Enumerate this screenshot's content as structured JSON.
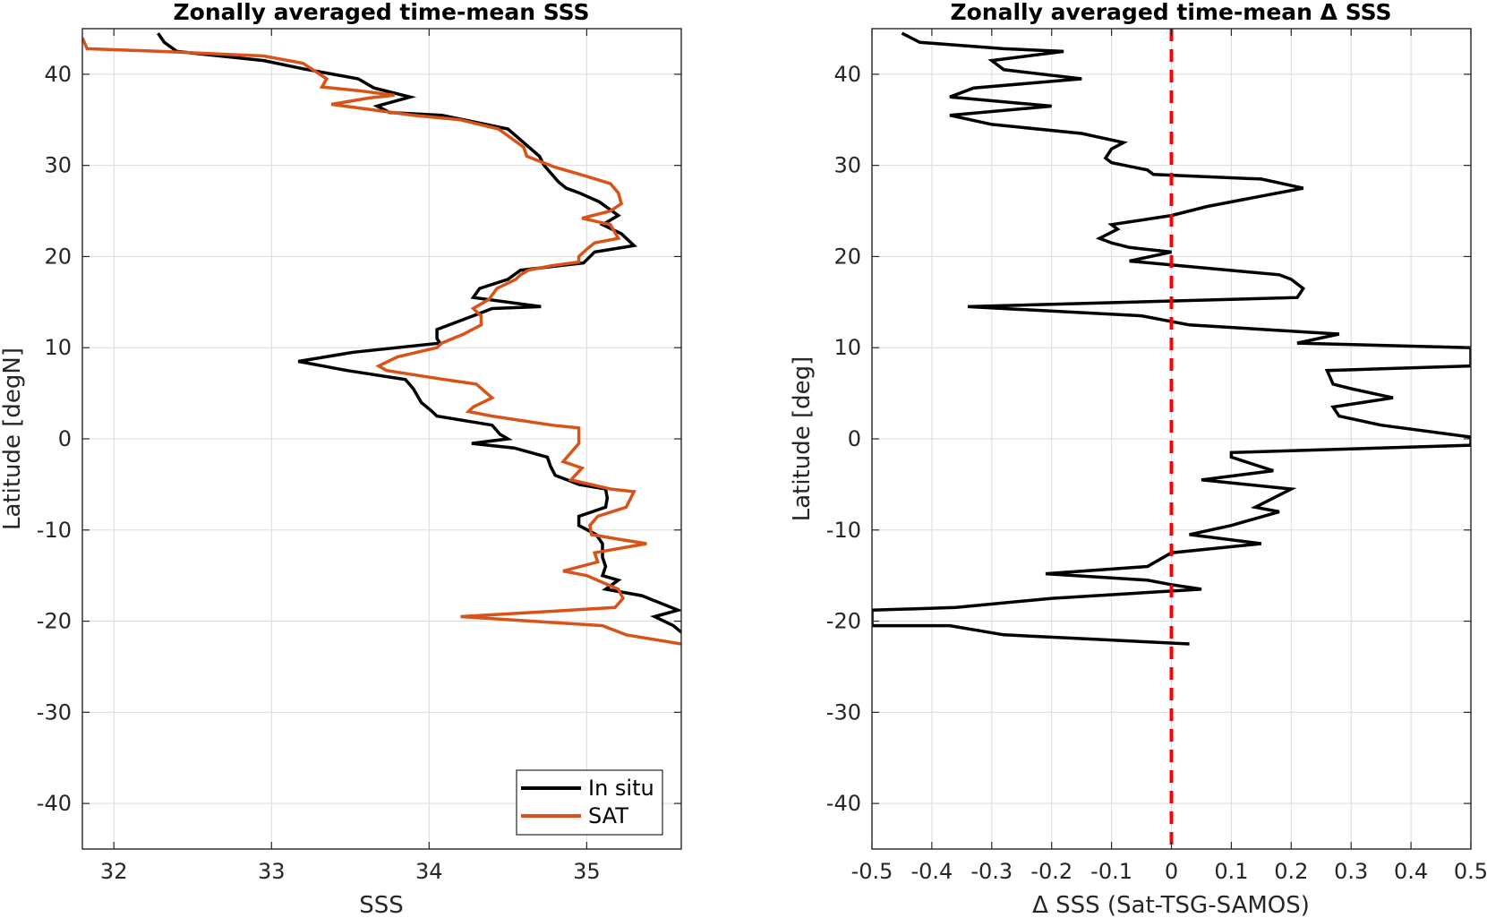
{
  "chart_data": [
    {
      "type": "line",
      "title": "Zonally averaged time-mean SSS",
      "xlabel": "SSS",
      "ylabel": "Latitude [degN]",
      "xlim": [
        31.8,
        35.6
      ],
      "ylim": [
        -45,
        45
      ],
      "xticks": [
        32,
        33,
        34,
        35
      ],
      "yticks": [
        -40,
        -30,
        -20,
        -10,
        0,
        10,
        20,
        30,
        40
      ],
      "grid": true,
      "legend_position": "bottom-right",
      "series": [
        {
          "name": "In situ",
          "color": "#000000",
          "points": [
            [
              32.28,
              44.5
            ],
            [
              32.32,
              43.5
            ],
            [
              32.4,
              42.5
            ],
            [
              32.95,
              41.5
            ],
            [
              33.2,
              40.6
            ],
            [
              33.55,
              39.5
            ],
            [
              33.65,
              38.5
            ],
            [
              33.88,
              37.5
            ],
            [
              33.67,
              36.5
            ],
            [
              33.75,
              35.8
            ],
            [
              34.08,
              35.5
            ],
            [
              34.5,
              34
            ],
            [
              34.6,
              32.5
            ],
            [
              34.7,
              31
            ],
            [
              34.73,
              30
            ],
            [
              34.82,
              28.2
            ],
            [
              34.87,
              27.5
            ],
            [
              34.95,
              27
            ],
            [
              35.08,
              26
            ],
            [
              35.2,
              24.5
            ],
            [
              35.1,
              23.5
            ],
            [
              35.22,
              22.5
            ],
            [
              35.3,
              21.2
            ],
            [
              35.05,
              20.5
            ],
            [
              34.98,
              19.3
            ],
            [
              34.58,
              18.5
            ],
            [
              34.5,
              17.5
            ],
            [
              34.32,
              16.5
            ],
            [
              34.28,
              15.5
            ],
            [
              34.71,
              14.5
            ],
            [
              34.4,
              14.3
            ],
            [
              34.28,
              13.5
            ],
            [
              34.05,
              12
            ],
            [
              34.05,
              11
            ],
            [
              34.07,
              10.5
            ],
            [
              33.52,
              9.5
            ],
            [
              33.17,
              8.5
            ],
            [
              33.48,
              7.5
            ],
            [
              33.85,
              6.5
            ],
            [
              33.9,
              5.5
            ],
            [
              33.95,
              4
            ],
            [
              34.02,
              3
            ],
            [
              34.05,
              2.5
            ],
            [
              34.4,
              1.5
            ],
            [
              34.45,
              0.5
            ],
            [
              34.5,
              0
            ],
            [
              34.27,
              -0.5
            ],
            [
              34.54,
              -1
            ],
            [
              34.75,
              -2
            ],
            [
              34.77,
              -3
            ],
            [
              34.8,
              -4
            ],
            [
              34.95,
              -5
            ],
            [
              35.12,
              -5.5
            ],
            [
              35.13,
              -6.5
            ],
            [
              35.12,
              -7.5
            ],
            [
              34.95,
              -8.5
            ],
            [
              34.95,
              -9.5
            ],
            [
              35.06,
              -10.5
            ],
            [
              35.1,
              -11.5
            ],
            [
              35.1,
              -13
            ],
            [
              35.12,
              -14
            ],
            [
              35.1,
              -15
            ],
            [
              35.2,
              -15.5
            ],
            [
              35.12,
              -16.5
            ],
            [
              35.35,
              -17.2
            ],
            [
              35.58,
              -18.8
            ],
            [
              35.43,
              -19.5
            ],
            [
              35.55,
              -20.5
            ],
            [
              35.62,
              -21.5
            ]
          ]
        },
        {
          "name": "SAT",
          "color": "#d95319",
          "points": [
            [
              31.8,
              44
            ],
            [
              31.83,
              42.8
            ],
            [
              32.3,
              42.5
            ],
            [
              32.95,
              42
            ],
            [
              33.2,
              41.2
            ],
            [
              33.35,
              39.5
            ],
            [
              33.32,
              38.6
            ],
            [
              33.55,
              38.2
            ],
            [
              33.78,
              37.7
            ],
            [
              33.62,
              37.4
            ],
            [
              33.38,
              36.7
            ],
            [
              33.9,
              35.5
            ],
            [
              34.2,
              35
            ],
            [
              34.44,
              34
            ],
            [
              34.6,
              32
            ],
            [
              34.62,
              31
            ],
            [
              34.8,
              29.8
            ],
            [
              35,
              28.8
            ],
            [
              35.15,
              28
            ],
            [
              35.2,
              27
            ],
            [
              35.22,
              25.8
            ],
            [
              35.15,
              25
            ],
            [
              34.97,
              24.2
            ],
            [
              35.15,
              23.5
            ],
            [
              35.2,
              22
            ],
            [
              35.05,
              21.5
            ],
            [
              35,
              20.8
            ],
            [
              34.95,
              20
            ],
            [
              34.95,
              19.4
            ],
            [
              34.78,
              19
            ],
            [
              34.63,
              18.5
            ],
            [
              34.58,
              18
            ],
            [
              34.55,
              17.5
            ],
            [
              34.43,
              16.5
            ],
            [
              34.38,
              15.3
            ],
            [
              34.28,
              14.3
            ],
            [
              34.33,
              13.5
            ],
            [
              34.33,
              12.5
            ],
            [
              34.22,
              11.5
            ],
            [
              34.08,
              10.5
            ],
            [
              34.05,
              10
            ],
            [
              33.8,
              9
            ],
            [
              33.68,
              8
            ],
            [
              33.73,
              7.5
            ],
            [
              34.1,
              6.5
            ],
            [
              34.3,
              6
            ],
            [
              34.4,
              4.5
            ],
            [
              34.28,
              3.5
            ],
            [
              34.25,
              3
            ],
            [
              34.4,
              2.5
            ],
            [
              34.78,
              1.5
            ],
            [
              34.95,
              1.2
            ],
            [
              34.95,
              0.5
            ],
            [
              34.95,
              -0.5
            ],
            [
              34.9,
              -1.5
            ],
            [
              34.85,
              -2.5
            ],
            [
              34.97,
              -3.2
            ],
            [
              34.9,
              -4.5
            ],
            [
              35.15,
              -5.5
            ],
            [
              35.3,
              -5.8
            ],
            [
              35.25,
              -7.5
            ],
            [
              35.07,
              -8.5
            ],
            [
              35.02,
              -9.5
            ],
            [
              35.03,
              -10.5
            ],
            [
              35.2,
              -11
            ],
            [
              35.38,
              -11.5
            ],
            [
              35.05,
              -12.5
            ],
            [
              35.07,
              -13.5
            ],
            [
              34.85,
              -14.5
            ],
            [
              35,
              -15
            ],
            [
              35.2,
              -16.5
            ],
            [
              35.23,
              -17.5
            ],
            [
              35.18,
              -18.5
            ],
            [
              34.2,
              -19.5
            ],
            [
              35.1,
              -20.5
            ],
            [
              35.25,
              -21.5
            ],
            [
              35.6,
              -22.5
            ]
          ]
        }
      ]
    },
    {
      "type": "line",
      "title": "Zonally averaged time-mean Δ SSS",
      "xlabel": "Δ SSS (Sat-TSG-SAMOS)",
      "ylabel": "Latitude [deg]",
      "xlim": [
        -0.5,
        0.5
      ],
      "ylim": [
        -45,
        45
      ],
      "xticks": [
        -0.5,
        -0.4,
        -0.3,
        -0.2,
        -0.1,
        0,
        0.1,
        0.2,
        0.3,
        0.4,
        0.5
      ],
      "yticks": [
        -40,
        -30,
        -20,
        -10,
        0,
        10,
        20,
        30,
        40
      ],
      "grid": true,
      "reference_line": {
        "x": 0,
        "color": "#ff0000",
        "style": "dashed"
      },
      "series": [
        {
          "color": "#000000",
          "points": [
            [
              -0.45,
              44.5
            ],
            [
              -0.42,
              43.5
            ],
            [
              -0.28,
              42.8
            ],
            [
              -0.18,
              42.5
            ],
            [
              -0.3,
              41.5
            ],
            [
              -0.28,
              40.5
            ],
            [
              -0.15,
              39.5
            ],
            [
              -0.33,
              38.5
            ],
            [
              -0.37,
              37.5
            ],
            [
              -0.2,
              36.5
            ],
            [
              -0.37,
              35.5
            ],
            [
              -0.3,
              34.5
            ],
            [
              -0.15,
              33.5
            ],
            [
              -0.08,
              32.5
            ],
            [
              -0.1,
              31.8
            ],
            [
              -0.11,
              30.8
            ],
            [
              -0.1,
              30.3
            ],
            [
              -0.04,
              29.5
            ],
            [
              -0.03,
              29
            ],
            [
              0.15,
              28.5
            ],
            [
              0.22,
              27.5
            ],
            [
              0.06,
              25.5
            ],
            [
              0,
              24.5
            ],
            [
              -0.1,
              23.5
            ],
            [
              -0.09,
              23
            ],
            [
              -0.12,
              22
            ],
            [
              -0.1,
              21.5
            ],
            [
              -0.07,
              21
            ],
            [
              0,
              20.5
            ],
            [
              -0.07,
              19.5
            ],
            [
              0.18,
              18
            ],
            [
              0.2,
              17.5
            ],
            [
              0.22,
              16.5
            ],
            [
              0.21,
              15.5
            ],
            [
              -0.34,
              14.5
            ],
            [
              -0.05,
              13.5
            ],
            [
              0.03,
              12.5
            ],
            [
              0.28,
              11.5
            ],
            [
              0.21,
              10.5
            ],
            [
              0.5,
              10
            ],
            [
              0.5,
              8
            ],
            [
              0.26,
              7.5
            ],
            [
              0.27,
              6
            ],
            [
              0.3,
              5.5
            ],
            [
              0.37,
              4.5
            ],
            [
              0.27,
              3.5
            ],
            [
              0.28,
              2.5
            ],
            [
              0.35,
              1.5
            ],
            [
              0.5,
              0.2
            ],
            [
              0.5,
              -0.7
            ],
            [
              0.1,
              -1.5
            ],
            [
              0.1,
              -2
            ],
            [
              0.17,
              -3.5
            ],
            [
              0.05,
              -4.5
            ],
            [
              0.2,
              -5.5
            ],
            [
              0.14,
              -7.5
            ],
            [
              0.18,
              -8
            ],
            [
              0.1,
              -9.5
            ],
            [
              0.03,
              -10.5
            ],
            [
              0.15,
              -11.5
            ],
            [
              0,
              -12.5
            ],
            [
              -0.04,
              -14
            ],
            [
              -0.21,
              -14.8
            ],
            [
              -0.04,
              -15.5
            ],
            [
              0,
              -16
            ],
            [
              0.05,
              -16.5
            ],
            [
              -0.2,
              -17.5
            ],
            [
              -0.36,
              -18.5
            ],
            [
              -0.5,
              -18.8
            ],
            [
              -0.5,
              -20.5
            ],
            [
              -0.37,
              -20.5
            ],
            [
              -0.28,
              -21.5
            ],
            [
              0.03,
              -22.5
            ]
          ]
        }
      ]
    }
  ],
  "legend": {
    "items": [
      {
        "label": "In situ",
        "color": "#000000"
      },
      {
        "label": "SAT",
        "color": "#d95319"
      }
    ]
  }
}
